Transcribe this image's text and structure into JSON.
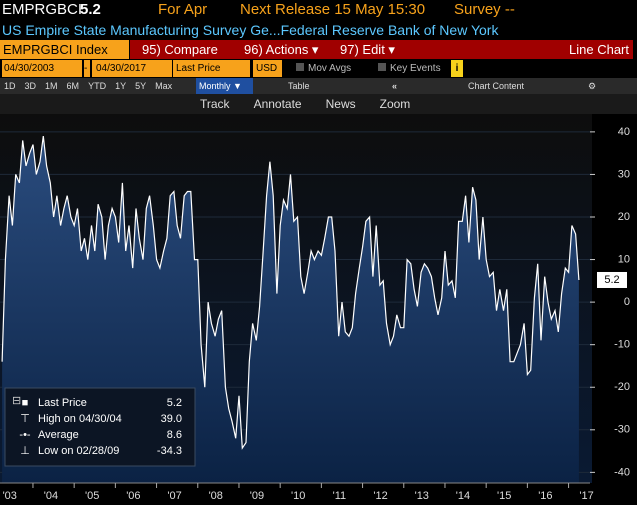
{
  "header": {
    "ticker": "EMPRGBCI",
    "last": "5.2",
    "period": "For Apr",
    "next_release": "Next Release 15 May 15:30",
    "survey": "Survey --",
    "description": "US Empire State Manufacturing Survey Ge...Federal Reserve Bank of New York"
  },
  "toolbar": {
    "security": "EMPRGBCI Index",
    "compare": "95) Compare",
    "actions": "96) Actions ▾",
    "edit": "97) Edit ▾",
    "chart_type": "Line Chart"
  },
  "controls": {
    "start": "04/30/2003",
    "end": "04/30/2017",
    "field": "Last Price",
    "currency": "USD",
    "mov_avgs": "Mov Avgs",
    "key_events": "Key Events",
    "chart_content": "Chart Content"
  },
  "ranges": [
    "1D",
    "3D",
    "1M",
    "6M",
    "YTD",
    "1Y",
    "5Y",
    "Max"
  ],
  "frequency": "Monthly ▼",
  "table": "Table",
  "tools": [
    "Track",
    "Annotate",
    "News",
    "Zoom"
  ],
  "legend": [
    {
      "name": "Last Price",
      "value": "5.2"
    },
    {
      "name": "High on 04/30/04",
      "value": "39.0"
    },
    {
      "name": "Average",
      "value": "8.6"
    },
    {
      "name": "Low on 02/28/09",
      "value": "-34.3"
    }
  ],
  "chart_data": {
    "type": "line",
    "color": "#ffffff",
    "last_label": "5.2",
    "x": [
      2003.25,
      2003.33,
      2003.42,
      2003.5,
      2003.58,
      2003.67,
      2003.75,
      2003.83,
      2003.92,
      2004,
      2004.08,
      2004.17,
      2004.25,
      2004.33,
      2004.42,
      2004.5,
      2004.58,
      2004.67,
      2004.75,
      2004.83,
      2004.92,
      2005,
      2005.08,
      2005.17,
      2005.25,
      2005.33,
      2005.42,
      2005.5,
      2005.58,
      2005.67,
      2005.75,
      2005.83,
      2005.92,
      2006,
      2006.08,
      2006.17,
      2006.25,
      2006.33,
      2006.42,
      2006.5,
      2006.58,
      2006.67,
      2006.75,
      2006.83,
      2006.92,
      2007,
      2007.08,
      2007.17,
      2007.25,
      2007.33,
      2007.42,
      2007.5,
      2007.58,
      2007.67,
      2007.75,
      2007.83,
      2007.92,
      2008,
      2008.08,
      2008.17,
      2008.25,
      2008.33,
      2008.42,
      2008.5,
      2008.58,
      2008.67,
      2008.75,
      2008.83,
      2008.92,
      2009,
      2009.08,
      2009.17,
      2009.25,
      2009.33,
      2009.42,
      2009.5,
      2009.58,
      2009.67,
      2009.75,
      2009.83,
      2009.92,
      2010,
      2010.08,
      2010.17,
      2010.25,
      2010.33,
      2010.42,
      2010.5,
      2010.58,
      2010.67,
      2010.75,
      2010.83,
      2010.92,
      2011,
      2011.08,
      2011.17,
      2011.25,
      2011.33,
      2011.42,
      2011.5,
      2011.58,
      2011.67,
      2011.75,
      2011.83,
      2011.92,
      2012,
      2012.08,
      2012.17,
      2012.25,
      2012.33,
      2012.42,
      2012.5,
      2012.58,
      2012.67,
      2012.75,
      2012.83,
      2012.92,
      2013,
      2013.08,
      2013.17,
      2013.25,
      2013.33,
      2013.42,
      2013.5,
      2013.58,
      2013.67,
      2013.75,
      2013.83,
      2013.92,
      2014,
      2014.08,
      2014.17,
      2014.25,
      2014.33,
      2014.42,
      2014.5,
      2014.58,
      2014.67,
      2014.75,
      2014.83,
      2014.92,
      2015,
      2015.08,
      2015.17,
      2015.25,
      2015.33,
      2015.42,
      2015.5,
      2015.58,
      2015.67,
      2015.75,
      2015.83,
      2015.92,
      2016,
      2016.08,
      2016.17,
      2016.25,
      2016.33,
      2016.42,
      2016.5,
      2016.58,
      2016.67,
      2016.75,
      2016.83,
      2016.92,
      2017,
      2017.08,
      2017.17,
      2017.25
    ],
    "values": [
      -14,
      10,
      25,
      18,
      30,
      28,
      38,
      32,
      35,
      37,
      30,
      33,
      39,
      32,
      28,
      20,
      25,
      18,
      22,
      25,
      20,
      18,
      22,
      12,
      15,
      10,
      18,
      12,
      23,
      20,
      10,
      18,
      22,
      20,
      14,
      28,
      12,
      18,
      8,
      22,
      15,
      10,
      22,
      25,
      18,
      10,
      8,
      12,
      15,
      25,
      26,
      18,
      15,
      25,
      26,
      26,
      10,
      10,
      -10,
      -20,
      0,
      -5,
      -8,
      -4,
      -2,
      -20,
      -25,
      -28,
      -32,
      -22,
      -34.3,
      -33,
      -14,
      -5,
      -9,
      -1,
      11,
      25,
      33,
      25,
      2,
      18,
      24,
      22,
      30,
      19,
      20,
      6,
      2,
      7,
      12,
      10,
      12,
      11,
      15,
      20,
      20,
      12,
      -8,
      0,
      -7,
      -8,
      -6,
      2,
      8,
      13,
      19,
      20,
      6,
      18,
      4,
      5,
      -5,
      -10,
      -8,
      -3,
      -6,
      -6,
      10,
      9,
      3,
      -1,
      7,
      9,
      8,
      6,
      1,
      -3,
      1,
      12,
      4,
      5,
      1,
      19,
      19,
      25,
      14,
      27,
      24,
      10,
      20,
      10,
      6,
      7,
      -2,
      3,
      -2,
      3,
      -14,
      -14,
      -12,
      -10,
      -5,
      -17,
      -16,
      1,
      9,
      -9,
      6,
      0,
      -4,
      -2,
      -7,
      2,
      8,
      7,
      18,
      16,
      5.2
    ],
    "xlim": [
      2003.2,
      2017.52
    ],
    "xticks": [
      {
        "value": 2003,
        "label": "'03"
      },
      {
        "value": 2004,
        "label": "'04"
      },
      {
        "value": 2005,
        "label": "'05"
      },
      {
        "value": 2006,
        "label": "'06"
      },
      {
        "value": 2007,
        "label": "'07"
      },
      {
        "value": 2008,
        "label": "'08"
      },
      {
        "value": 2009,
        "label": "'09"
      },
      {
        "value": 2010,
        "label": "'10"
      },
      {
        "value": 2011,
        "label": "'11"
      },
      {
        "value": 2012,
        "label": "'12"
      },
      {
        "value": 2013,
        "label": "'13"
      },
      {
        "value": 2014,
        "label": "'14"
      },
      {
        "value": 2015,
        "label": "'15"
      },
      {
        "value": 2016,
        "label": "'16"
      },
      {
        "value": 2017,
        "label": "'17"
      }
    ],
    "ylim": [
      -42.5,
      44.2
    ],
    "yticks": [
      40,
      30,
      20,
      10,
      0,
      -10,
      -20,
      -30,
      -40
    ]
  }
}
